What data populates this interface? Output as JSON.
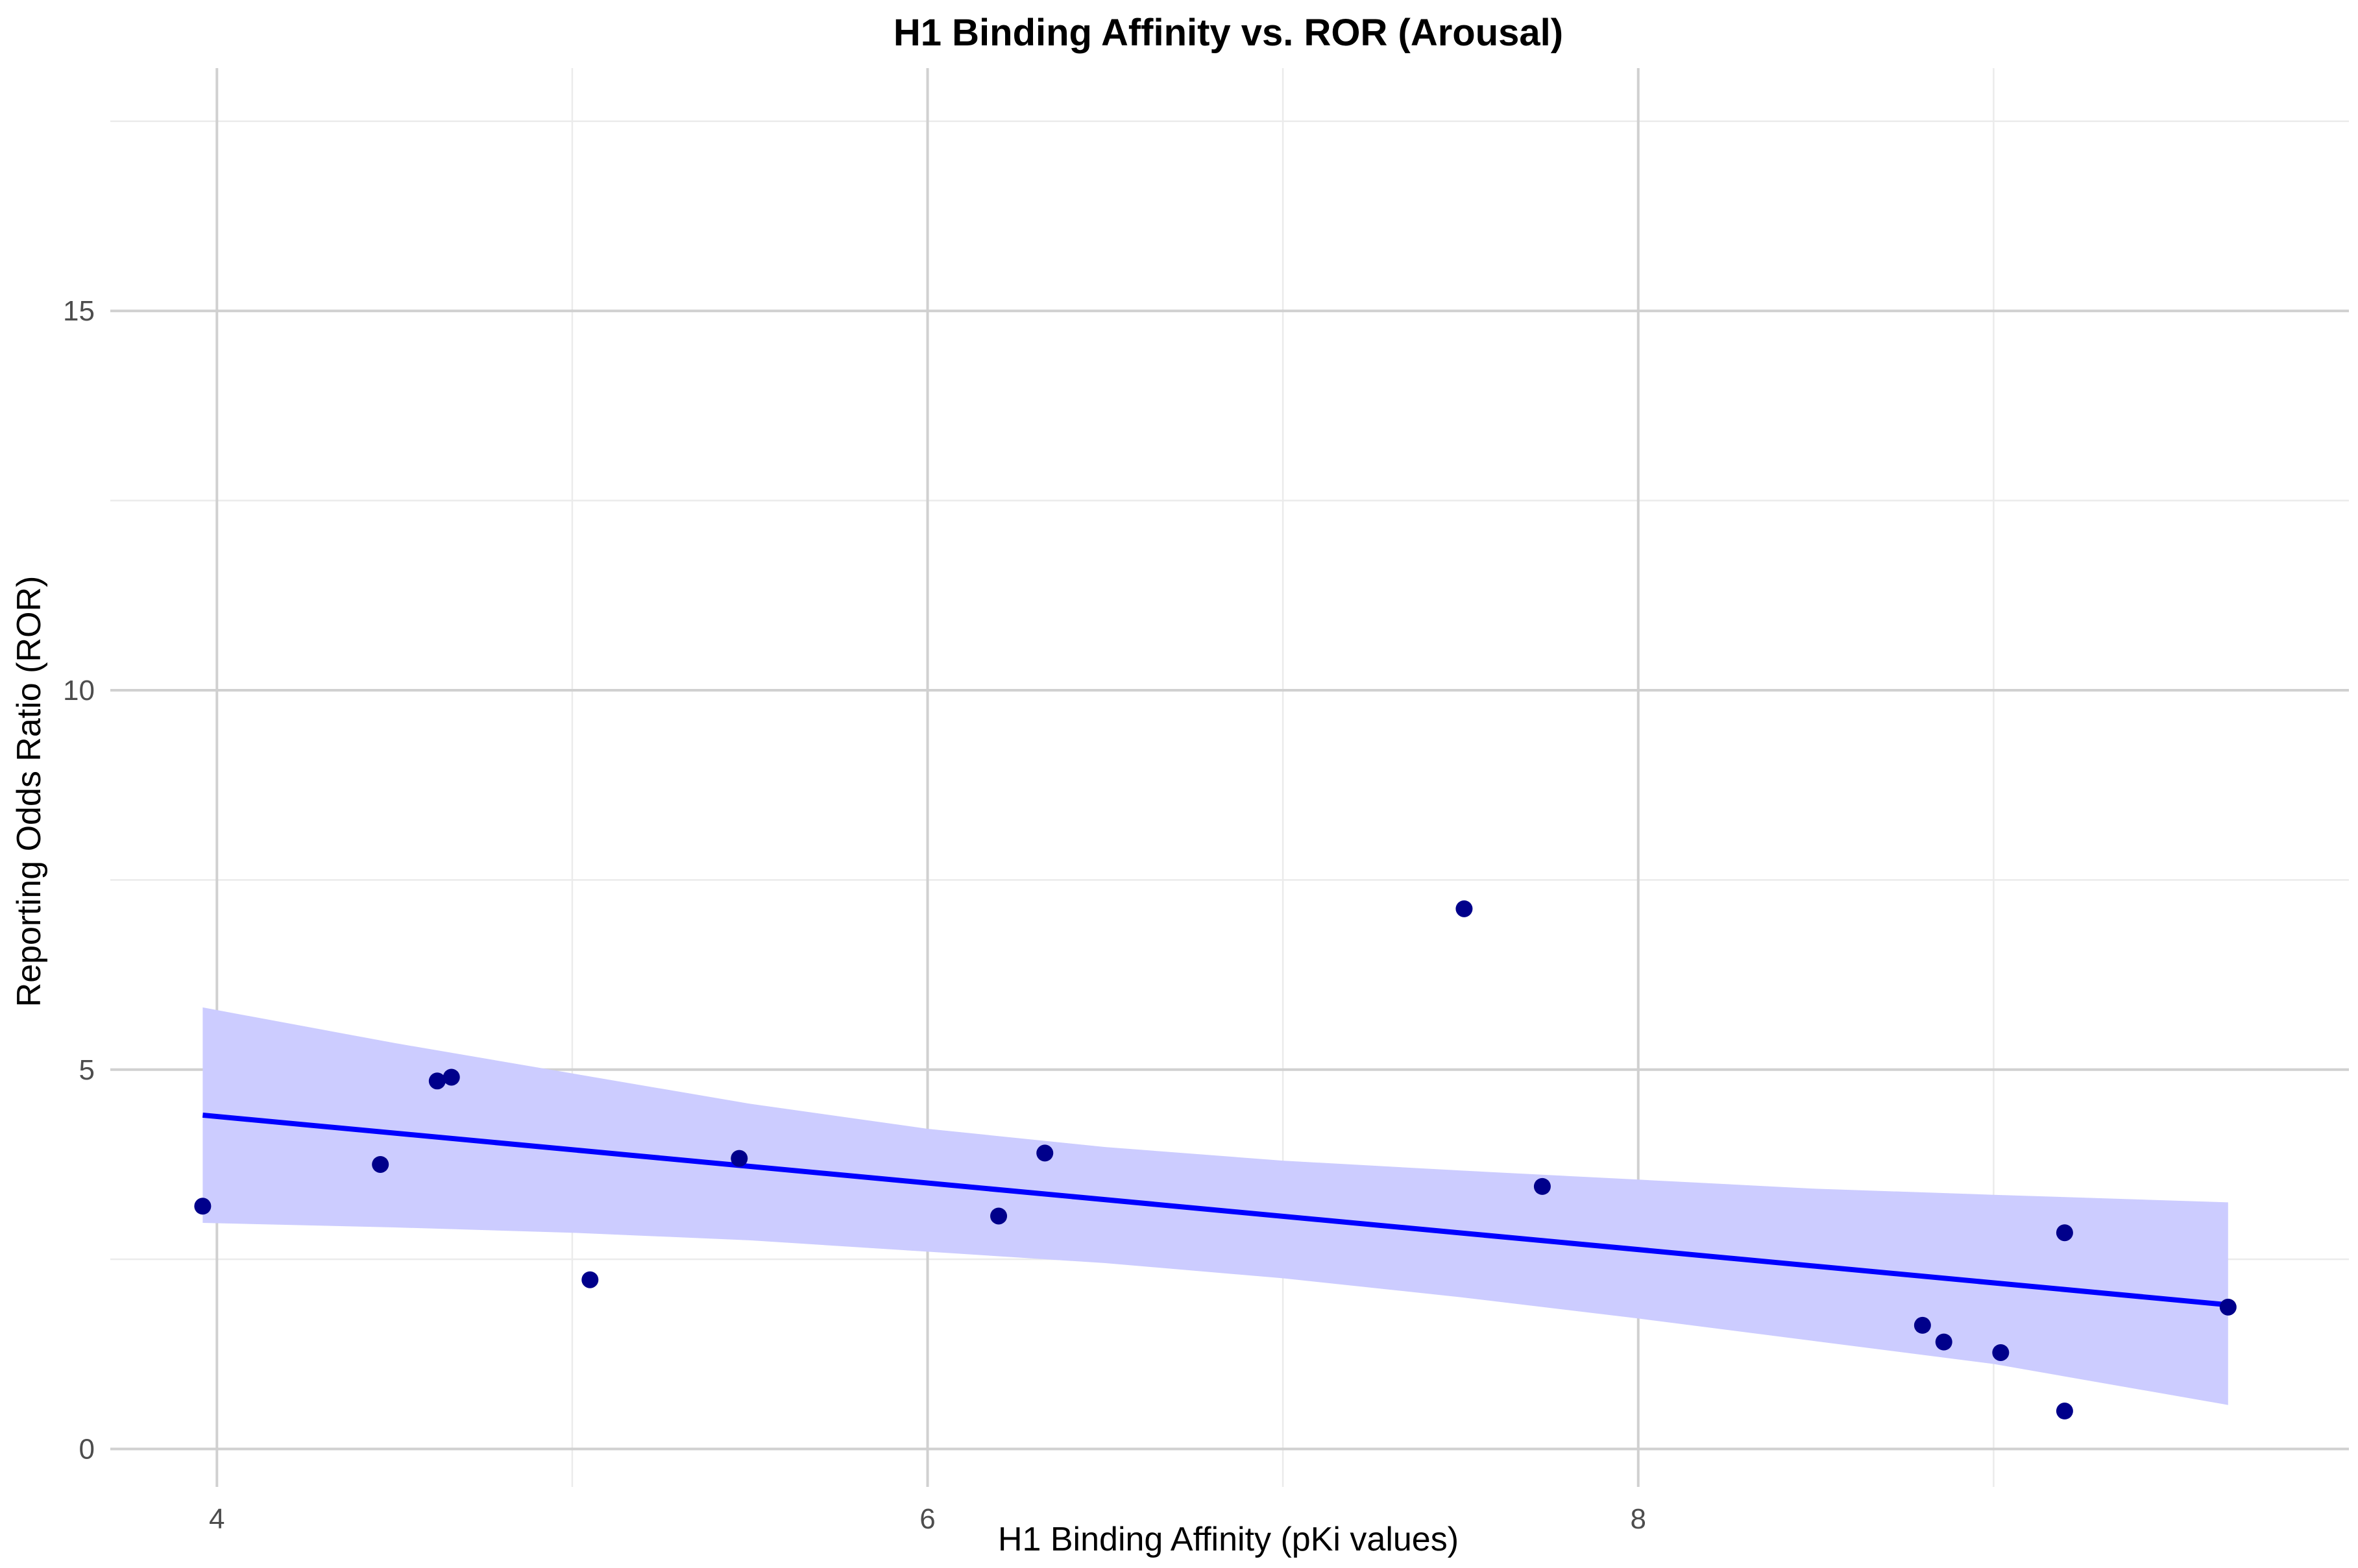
{
  "chart_data": {
    "type": "scatter",
    "title": "H1 Binding Affinity vs. ROR (Arousal)",
    "xlabel": "H1 Binding Affinity (pKi values)",
    "ylabel": "Reporting Odds Ratio (ROR)",
    "xlim": [
      3.7,
      10.0
    ],
    "ylim": [
      -0.5,
      18.2
    ],
    "x_ticks": [
      4,
      6,
      8
    ],
    "x_minor_ticks": [
      5,
      7,
      9
    ],
    "y_ticks": [
      0,
      5,
      10,
      15
    ],
    "y_minor_ticks": [
      2.5,
      7.5,
      12.5,
      17.5
    ],
    "grid": true,
    "colors": {
      "points": "#00008b",
      "fit_line": "#0000ff",
      "confidence_band": "#ccccff",
      "grid_major": "#d0d0d0",
      "grid_minor": "#ebebeb"
    },
    "points": {
      "x": [
        3.96,
        4.46,
        4.62,
        4.66,
        5.05,
        5.47,
        6.2,
        6.33,
        7.51,
        7.73,
        8.8,
        8.86,
        9.02,
        9.2,
        9.2,
        9.66
      ],
      "y": [
        3.2,
        3.75,
        4.85,
        4.9,
        2.23,
        3.83,
        3.07,
        3.9,
        7.12,
        3.46,
        1.63,
        1.41,
        1.27,
        2.85,
        0.5,
        1.87
      ]
    },
    "fit_line": {
      "x": [
        3.96,
        9.66
      ],
      "y": [
        4.4,
        1.9
      ]
    },
    "confidence_band": {
      "x": [
        3.96,
        4.5,
        5.0,
        5.5,
        6.0,
        6.5,
        7.0,
        7.5,
        8.0,
        8.5,
        9.0,
        9.66
      ],
      "upper": [
        5.82,
        5.35,
        4.95,
        4.55,
        4.22,
        3.98,
        3.8,
        3.67,
        3.55,
        3.43,
        3.35,
        3.25
      ],
      "lower": [
        2.98,
        2.92,
        2.85,
        2.75,
        2.6,
        2.45,
        2.25,
        2.0,
        1.72,
        1.42,
        1.12,
        0.58
      ]
    }
  }
}
